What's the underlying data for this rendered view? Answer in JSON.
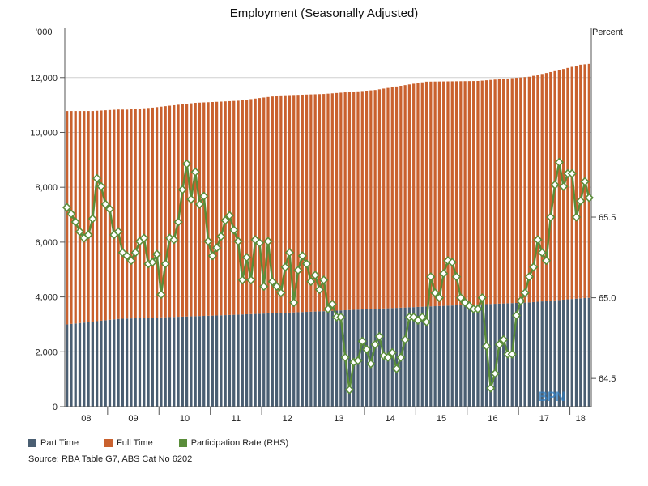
{
  "chart_data": {
    "type": "bar",
    "title": "Employment (Seasonally Adjusted)",
    "left_axis_unit": "'000",
    "right_axis_unit": "Percent",
    "left_axis": {
      "ticks": [
        0,
        2000,
        4000,
        6000,
        8000,
        10000,
        12000
      ],
      "tick_labels": [
        "0",
        "2,000",
        "4,000",
        "6,000",
        "8,000",
        "10,000",
        "12,000"
      ],
      "ylim": [
        0,
        13500
      ]
    },
    "right_axis": {
      "ticks": [
        64.5,
        65.0,
        65.5
      ],
      "tick_labels": [
        "64.5",
        "65.0",
        "65.5"
      ],
      "ylim": [
        64.325,
        66.62
      ]
    },
    "stacked": true,
    "start_month": "2008-03",
    "x_tick_labels": [
      "08",
      "09",
      "10",
      "11",
      "12",
      "13",
      "14",
      "15",
      "16",
      "17",
      "18"
    ],
    "grid": {
      "horizontal": true
    },
    "series": [
      {
        "name": "Part Time",
        "axis": "left",
        "type": "bar",
        "color": "#4a5e72",
        "anchors": [
          [
            0,
            3000
          ],
          [
            12,
            3200
          ],
          [
            36,
            3330
          ],
          [
            60,
            3480
          ],
          [
            84,
            3650
          ],
          [
            108,
            3800
          ],
          [
            120,
            3950
          ],
          [
            126,
            4000
          ]
        ]
      },
      {
        "name": "Full Time",
        "axis": "left",
        "type": "bar",
        "color": "#c9612e",
        "anchors": [
          [
            0,
            7780
          ],
          [
            6,
            7680
          ],
          [
            14,
            7620
          ],
          [
            20,
            7660
          ],
          [
            30,
            7780
          ],
          [
            40,
            7800
          ],
          [
            50,
            7930
          ],
          [
            60,
            7920
          ],
          [
            72,
            7980
          ],
          [
            84,
            8200
          ],
          [
            96,
            8150
          ],
          [
            108,
            8230
          ],
          [
            114,
            8360
          ],
          [
            120,
            8520
          ],
          [
            126,
            8560
          ]
        ]
      },
      {
        "name": "Participation Rate (RHS)",
        "axis": "right",
        "type": "line",
        "color": "#5a8d3a",
        "values": [
          65.56,
          65.52,
          65.47,
          65.41,
          65.37,
          65.39,
          65.49,
          65.74,
          65.69,
          65.58,
          65.55,
          65.39,
          65.41,
          65.28,
          65.26,
          65.23,
          65.28,
          65.35,
          65.37,
          65.21,
          65.22,
          65.27,
          65.02,
          65.21,
          65.37,
          65.36,
          65.47,
          65.67,
          65.83,
          65.61,
          65.78,
          65.58,
          65.63,
          65.35,
          65.26,
          65.31,
          65.38,
          65.48,
          65.51,
          65.42,
          65.35,
          65.11,
          65.25,
          65.11,
          65.36,
          65.34,
          65.07,
          65.35,
          65.1,
          65.07,
          65.03,
          65.19,
          65.28,
          64.97,
          65.17,
          65.26,
          65.21,
          65.1,
          65.14,
          65.05,
          65.11,
          64.93,
          64.96,
          64.88,
          64.88,
          64.63,
          64.43,
          64.6,
          64.61,
          64.73,
          64.68,
          64.59,
          64.71,
          64.76,
          64.64,
          64.63,
          64.66,
          64.56,
          64.63,
          64.74,
          64.88,
          64.88,
          64.86,
          64.88,
          64.85,
          65.13,
          65.03,
          65.0,
          65.15,
          65.23,
          65.22,
          65.13,
          65.0,
          64.97,
          64.95,
          64.93,
          64.93,
          65.0,
          64.7,
          64.44,
          64.53,
          64.71,
          64.74,
          64.65,
          64.65,
          64.89,
          64.98,
          65.03,
          65.13,
          65.19,
          65.36,
          65.28,
          65.23,
          65.5,
          65.7,
          65.84,
          65.69,
          65.77,
          65.77,
          65.5,
          65.6,
          65.72,
          65.62
        ]
      }
    ]
  },
  "legend": {
    "part_time": "Part Time",
    "full_time": "Full Time",
    "participation": "Participation Rate (RHS)"
  },
  "source": "Source: RBA Table G7, ABS Cat No 6202",
  "logo_text": "BPN"
}
